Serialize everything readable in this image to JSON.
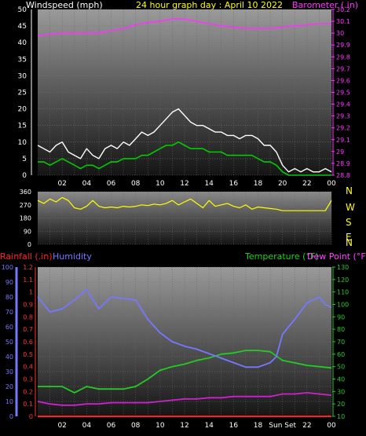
{
  "header": {
    "left": "Windspeed (mph)",
    "center": "24 hour graph day : April 10 2022",
    "right": "Barometer (.in)"
  },
  "compass": [
    "N",
    "W",
    "S",
    "E",
    "N"
  ],
  "bottom_header": {
    "rainfall": "Rainfall (.in)",
    "humidity": "Humidity",
    "temperature": "Temperature (°F)",
    "dewpoint": "Dew Point (°F)"
  },
  "colors": {
    "wind_gust": "#ffffff",
    "wind_avg": "#00cc00",
    "barometer": "#ff33ff",
    "direction": "#ffff00",
    "humidity": "#7777ff",
    "temperature": "#22cc22",
    "dewpoint": "#cc22cc",
    "rain": "#ff2222"
  },
  "chart_data": [
    {
      "type": "line",
      "name": "wind-barometer",
      "x_ticks": [
        "02",
        "04",
        "06",
        "08",
        "10",
        "12",
        "14",
        "16",
        "18",
        "20",
        "22",
        "00"
      ],
      "y_left_ticks": [
        "0",
        "5",
        "10",
        "15",
        "20",
        "25",
        "30",
        "35",
        "40",
        "45",
        "50"
      ],
      "y_right_ticks": [
        "28.8",
        "28.9",
        "29",
        "29.1",
        "29.2",
        "29.3",
        "29.4",
        "29.5",
        "29.6",
        "29.7",
        "29.8",
        "29.9",
        "30",
        "30.1",
        "30.2"
      ],
      "ylim_left": [
        0,
        50
      ],
      "ylim_right": [
        28.8,
        30.2
      ],
      "xlim": [
        0,
        24
      ],
      "series": [
        {
          "key": "barometer",
          "x": [
            0,
            1,
            2,
            3,
            4,
            5,
            6,
            7,
            8,
            9,
            10,
            11,
            12,
            13,
            14,
            15,
            16,
            17,
            18,
            19,
            20,
            21,
            22,
            23,
            24
          ],
          "values": [
            29.98,
            29.99,
            30.0,
            30.0,
            30.0,
            30.0,
            30.02,
            30.04,
            30.07,
            30.09,
            30.1,
            30.12,
            30.12,
            30.1,
            30.08,
            30.06,
            30.05,
            30.04,
            30.04,
            30.04,
            30.05,
            30.06,
            30.07,
            30.08,
            30.08
          ]
        },
        {
          "key": "wind_gust",
          "x": [
            0,
            0.5,
            1,
            1.5,
            2,
            2.5,
            3,
            3.5,
            4,
            4.5,
            5,
            5.5,
            6,
            6.5,
            7,
            7.5,
            8,
            8.5,
            9,
            9.5,
            10,
            10.5,
            11,
            11.5,
            12,
            12.5,
            13,
            13.5,
            14,
            14.5,
            15,
            15.5,
            16,
            16.5,
            17,
            17.5,
            18,
            18.5,
            19,
            19.5,
            20,
            20.5,
            21,
            21.5,
            22,
            22.5,
            23,
            23.5,
            24
          ],
          "values": [
            9,
            8,
            7,
            9,
            10,
            7,
            6,
            5,
            8,
            6,
            5,
            8,
            9,
            8,
            10,
            9,
            11,
            13,
            12,
            13,
            15,
            17,
            19,
            20,
            18,
            16,
            15,
            15,
            14,
            13,
            13,
            12,
            12,
            11,
            12,
            12,
            11,
            9,
            9,
            7,
            3,
            1,
            2,
            1,
            2,
            1,
            1,
            2,
            1
          ]
        },
        {
          "key": "wind_avg",
          "x": [
            0,
            0.5,
            1,
            1.5,
            2,
            2.5,
            3,
            3.5,
            4,
            4.5,
            5,
            5.5,
            6,
            6.5,
            7,
            7.5,
            8,
            8.5,
            9,
            9.5,
            10,
            10.5,
            11,
            11.5,
            12,
            12.5,
            13,
            13.5,
            14,
            14.5,
            15,
            15.5,
            16,
            16.5,
            17,
            17.5,
            18,
            18.5,
            19,
            19.5,
            20,
            20.5,
            21,
            21.5,
            22,
            22.5,
            23,
            23.5,
            24
          ],
          "values": [
            4,
            4,
            3,
            4,
            5,
            4,
            3,
            2,
            3,
            3,
            2,
            3,
            4,
            4,
            5,
            5,
            5,
            6,
            6,
            7,
            8,
            9,
            9,
            10,
            9,
            8,
            8,
            8,
            7,
            7,
            7,
            6,
            6,
            6,
            6,
            6,
            5,
            4,
            4,
            3,
            1,
            0,
            0,
            0,
            0,
            0,
            0,
            0,
            0
          ]
        }
      ]
    },
    {
      "type": "line",
      "name": "wind-direction",
      "y_ticks": [
        "360",
        "270",
        "180",
        "90",
        "0"
      ],
      "ylim": [
        0,
        360
      ],
      "xlim": [
        0,
        24
      ],
      "series": [
        {
          "key": "direction",
          "x": [
            0,
            0.5,
            1,
            1.5,
            2,
            2.5,
            3,
            3.5,
            4,
            4.5,
            5,
            5.5,
            6,
            6.5,
            7,
            7.5,
            8,
            8.5,
            9,
            9.5,
            10,
            10.5,
            11,
            11.5,
            12,
            12.5,
            13,
            13.5,
            14,
            14.5,
            15,
            15.5,
            16,
            16.5,
            17,
            17.5,
            18,
            18.5,
            19,
            19.5,
            20,
            20.5,
            21,
            21.5,
            22,
            22.5,
            23,
            23.5,
            24
          ],
          "values": [
            300,
            280,
            310,
            290,
            320,
            300,
            250,
            240,
            260,
            300,
            260,
            250,
            255,
            250,
            260,
            255,
            260,
            270,
            265,
            275,
            270,
            280,
            300,
            270,
            290,
            310,
            280,
            250,
            300,
            260,
            270,
            280,
            260,
            250,
            270,
            240,
            255,
            250,
            245,
            240,
            230,
            230,
            230,
            230,
            230,
            230,
            230,
            230,
            300
          ]
        }
      ]
    },
    {
      "type": "line",
      "name": "humidity-temperature",
      "x_ticks": [
        "02",
        "04",
        "06",
        "08",
        "10",
        "12",
        "14",
        "16",
        "18",
        "Sun Set",
        "22",
        "00"
      ],
      "y_humidity_ticks": [
        "0",
        "10",
        "20",
        "30",
        "40",
        "50",
        "60",
        "70",
        "80",
        "90",
        "100"
      ],
      "y_rain_ticks": [
        "0",
        "0.1",
        "0.2",
        "0.3",
        "0.4",
        "0.5",
        "0.6",
        "0.7",
        "0.8",
        "0.9",
        "1",
        "1.1",
        "1.2"
      ],
      "y_temp_ticks": [
        "10",
        "20",
        "30",
        "40",
        "50",
        "60",
        "70",
        "80",
        "90",
        "100",
        "110",
        "120",
        "130"
      ],
      "ylim_humidity": [
        0,
        100
      ],
      "ylim_temp": [
        10,
        130
      ],
      "xlim": [
        0,
        24
      ],
      "series": [
        {
          "key": "humidity",
          "x": [
            0,
            1,
            2,
            3,
            4,
            5,
            6,
            7,
            8,
            9,
            10,
            11,
            12,
            13,
            14,
            15,
            16,
            17,
            18,
            19,
            19.5,
            20,
            21,
            22,
            23,
            23.5,
            24
          ],
          "values": [
            80,
            70,
            72,
            78,
            85,
            72,
            80,
            79,
            78,
            65,
            56,
            50,
            47,
            45,
            42,
            39,
            36,
            33,
            33,
            36,
            40,
            55,
            65,
            76,
            80,
            75,
            73
          ]
        },
        {
          "key": "temperature",
          "x": [
            0,
            1,
            2,
            3,
            4,
            5,
            6,
            7,
            8,
            9,
            10,
            11,
            12,
            13,
            14,
            15,
            16,
            17,
            18,
            19,
            20,
            21,
            22,
            23,
            24
          ],
          "values": [
            34,
            34,
            34,
            29,
            34,
            32,
            32,
            32,
            34,
            40,
            47,
            50,
            52,
            55,
            57,
            60,
            61,
            63,
            63,
            62,
            55,
            53,
            51,
            50,
            49
          ]
        },
        {
          "key": "dewpoint",
          "x": [
            0,
            1,
            2,
            3,
            4,
            5,
            6,
            7,
            8,
            9,
            10,
            11,
            12,
            13,
            14,
            15,
            16,
            17,
            18,
            19,
            20,
            21,
            22,
            23,
            24
          ],
          "values": [
            22,
            20,
            19,
            19,
            20,
            20,
            21,
            21,
            21,
            21,
            22,
            23,
            24,
            24,
            25,
            25,
            26,
            26,
            26,
            26,
            28,
            28,
            29,
            28,
            27
          ]
        },
        {
          "key": "rain",
          "x": [
            0,
            24
          ],
          "values": [
            0,
            0
          ]
        }
      ]
    }
  ]
}
